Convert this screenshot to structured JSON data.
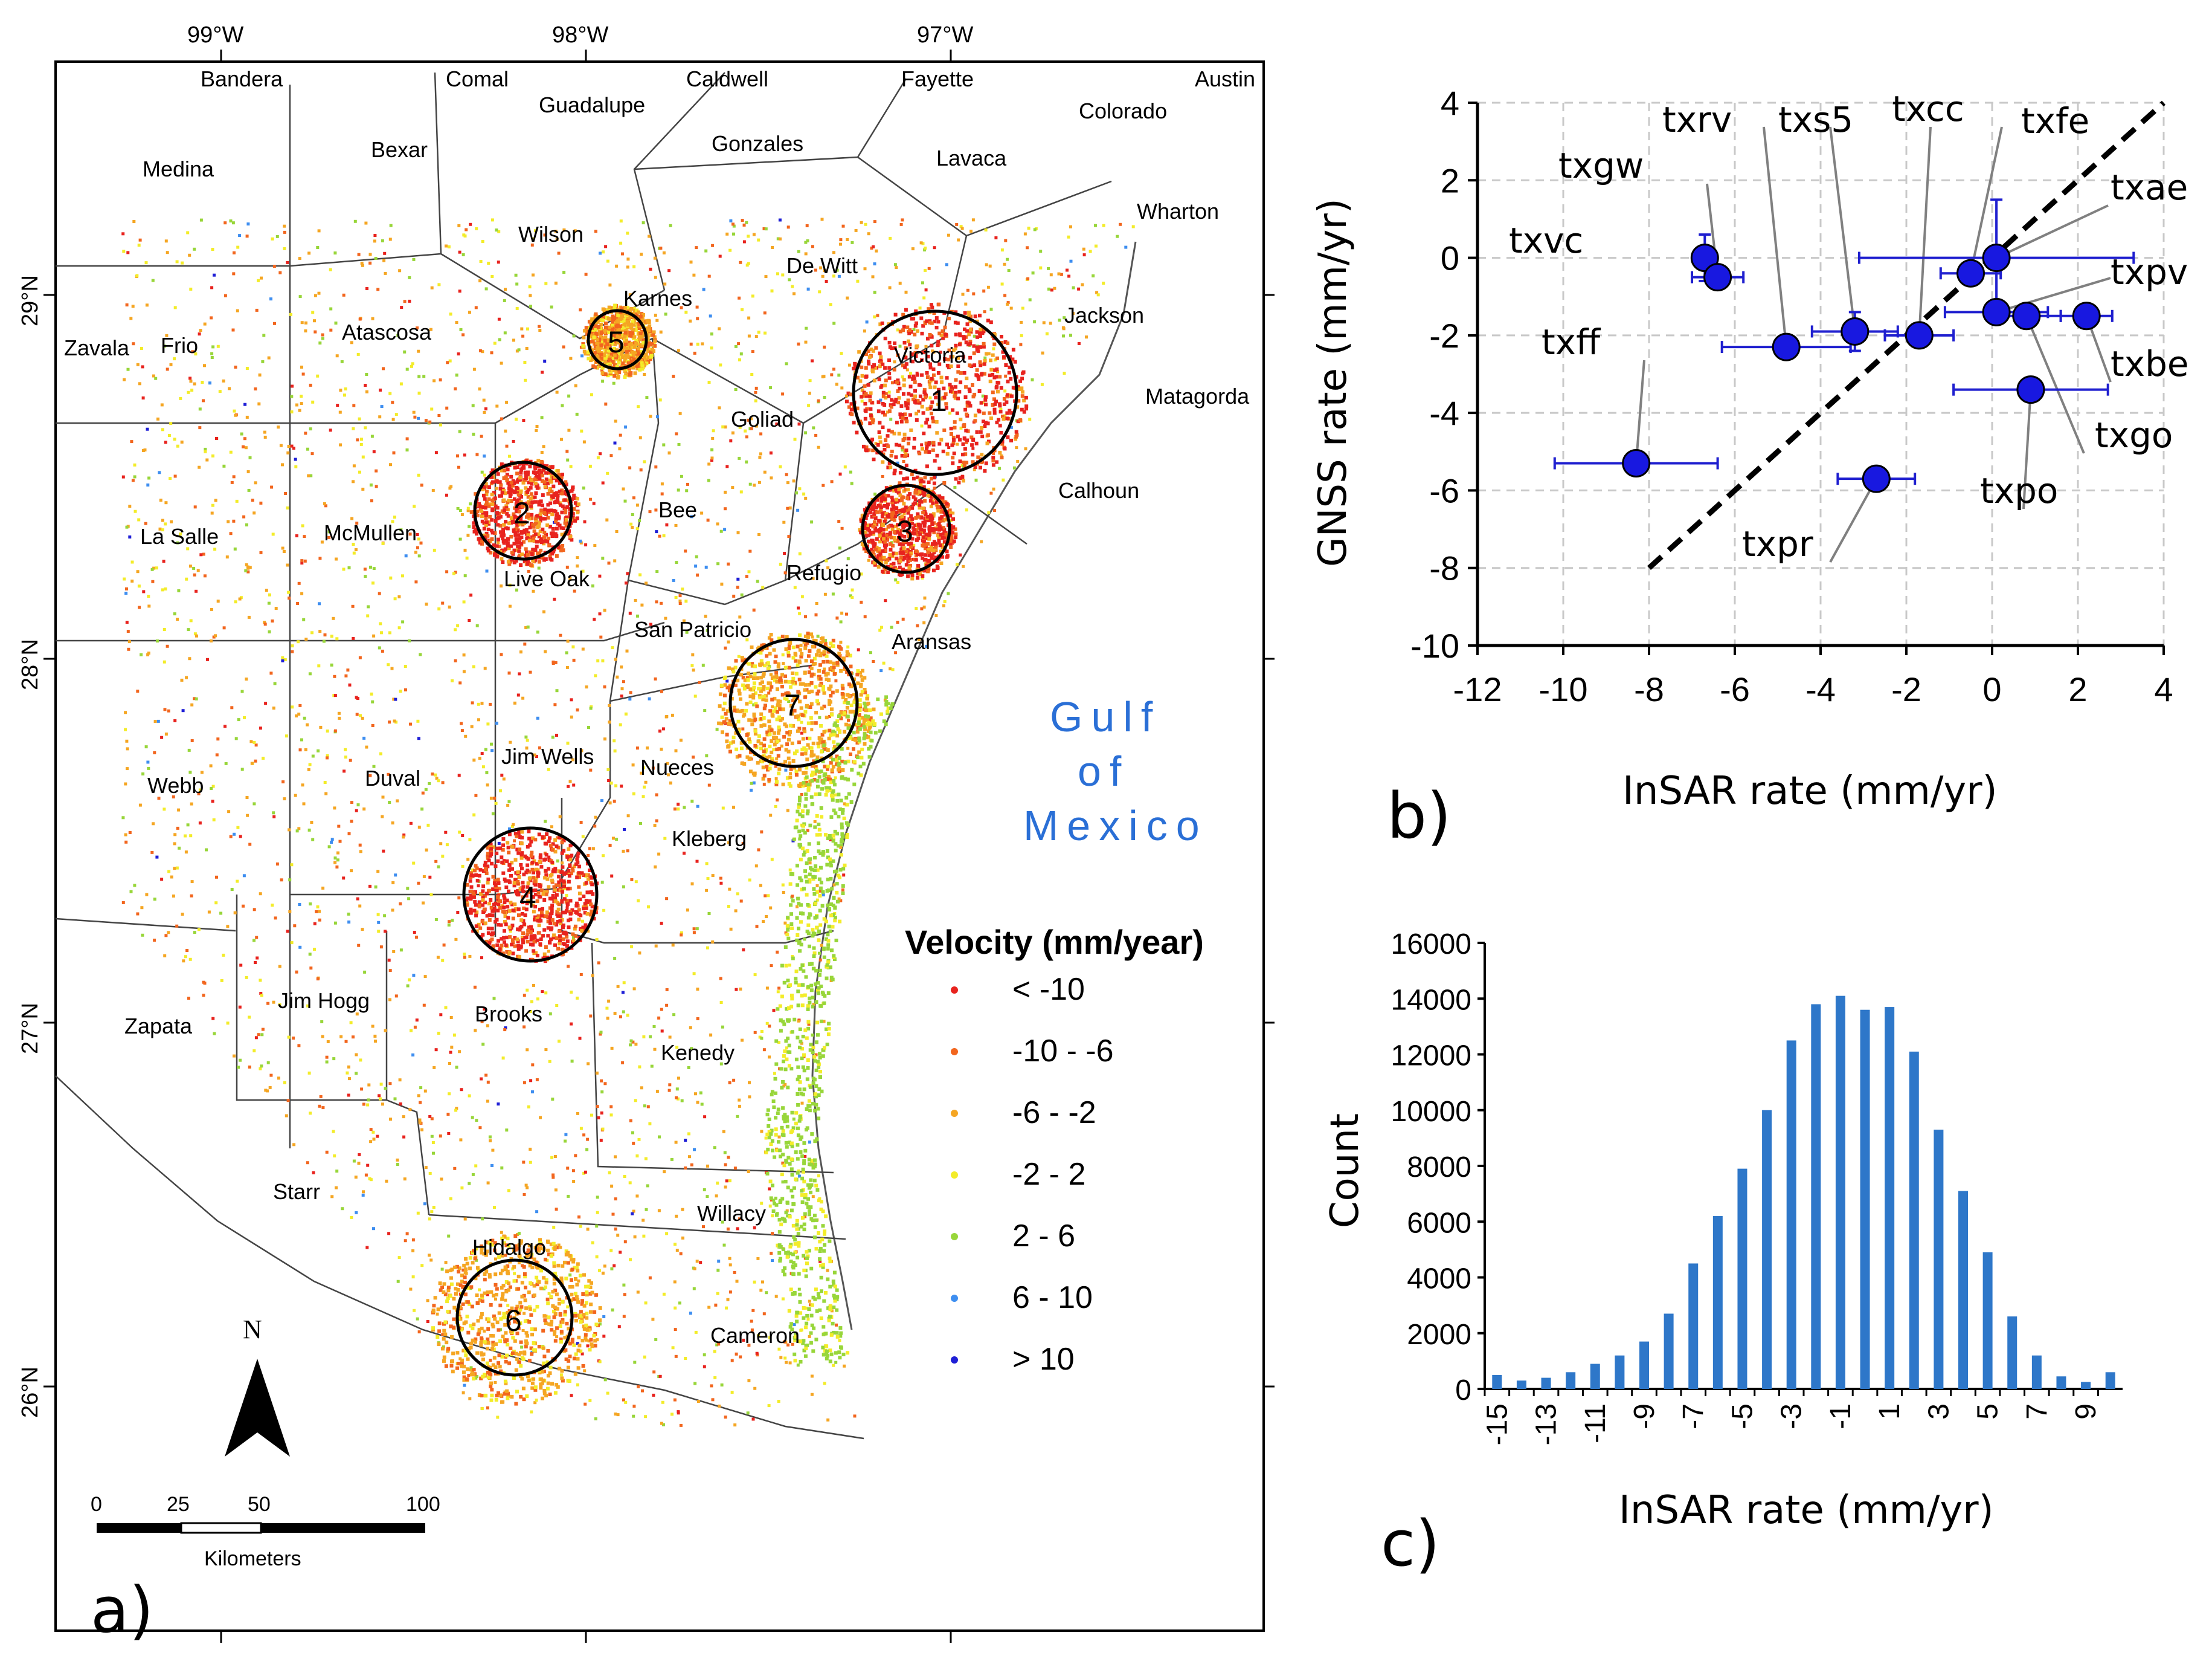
{
  "map": {
    "panel_label": "a)",
    "lon_ticks": [
      "99°W",
      "98°W",
      "97°W"
    ],
    "lat_ticks": [
      "29°N",
      "28°N",
      "27°N",
      "26°N"
    ],
    "counties": [
      "Bandera",
      "Comal",
      "Caldwell",
      "Fayette",
      "Austin",
      "Guadalupe",
      "Colorado",
      "Medina",
      "Bexar",
      "Gonzales",
      "Lavaca",
      "Wharton",
      "Wilson",
      "De Witt",
      "Jackson",
      "Karnes",
      "Zavala",
      "Frio",
      "Atascosa",
      "Victoria",
      "Goliad",
      "Matagorda",
      "Calhoun",
      "La Salle",
      "McMullen",
      "Live Oak",
      "Bee",
      "Refugio",
      "San Patricio",
      "Aransas",
      "Webb",
      "Duval",
      "Jim Wells",
      "Nueces",
      "Kleberg",
      "Jim Hogg",
      "Brooks",
      "Zapata",
      "Kenedy",
      "Starr",
      "Willacy",
      "Hidalgo",
      "Cameron"
    ],
    "circles": [
      "1",
      "2",
      "3",
      "4",
      "5",
      "6",
      "7"
    ],
    "gulf_label": [
      "Gulf",
      "of",
      "Mexico"
    ],
    "north": "N",
    "scale": {
      "ticks": [
        "0",
        "25",
        "50",
        "100"
      ],
      "unit": "Kilometers"
    },
    "legend": {
      "title": "Velocity (mm/year)",
      "items": [
        {
          "label": "< -10",
          "color": "#e8231e"
        },
        {
          "label": "-10 -  -6",
          "color": "#f2661e"
        },
        {
          "label": "-6 - -2",
          "color": "#f5a623"
        },
        {
          "label": "-2 - 2",
          "color": "#f3ec2a"
        },
        {
          "label": "2 - 6",
          "color": "#98d63a"
        },
        {
          "label": "6 - 10",
          "color": "#3e8ef0"
        },
        {
          "label": "> 10",
          "color": "#1f1fd6"
        }
      ]
    }
  },
  "chart_data": [
    {
      "panel": "b)",
      "type": "scatter",
      "xlabel": "InSAR rate (mm/yr)",
      "ylabel": "GNSS rate (mm/yr)",
      "xlim": [
        -12,
        4
      ],
      "ylim": [
        -10,
        4
      ],
      "xticks": [
        -12,
        -10,
        -8,
        -6,
        -4,
        -2,
        0,
        2,
        4
      ],
      "yticks": [
        -10,
        -8,
        -6,
        -4,
        -2,
        0,
        2,
        4
      ],
      "grid": true,
      "reference_line": {
        "style": "dashed",
        "x": [
          -8,
          4
        ],
        "y": [
          -8,
          4
        ]
      },
      "points": [
        {
          "label": "txvc",
          "x": -6.7,
          "y": 0.0,
          "xerr": 0.0,
          "yerr": 0.6
        },
        {
          "label": "txgw",
          "x": -6.4,
          "y": -0.5,
          "xerr": 0.6,
          "yerr": 0.3
        },
        {
          "label": "txrv",
          "x": -4.8,
          "y": -2.3,
          "xerr": 1.5,
          "yerr": 0.3
        },
        {
          "label": "txs5",
          "x": -3.2,
          "y": -1.9,
          "xerr": 1.0,
          "yerr": 0.5
        },
        {
          "label": "txcc",
          "x": -1.7,
          "y": -2.0,
          "xerr": 0.8,
          "yerr": 0.2
        },
        {
          "label": "txfe",
          "x": -0.5,
          "y": -0.4,
          "xerr": 0.7,
          "yerr": 0.3
        },
        {
          "label": "txae",
          "x": 0.1,
          "y": 0.0,
          "xerr": 3.2,
          "yerr": 1.5
        },
        {
          "label": "txpv",
          "x": 0.1,
          "y": -1.4,
          "xerr": 1.2,
          "yerr": 0.2
        },
        {
          "label": "txgo",
          "x": 0.8,
          "y": -1.5,
          "xerr": 0.8,
          "yerr": 0.2
        },
        {
          "label": "txbe",
          "x": 2.2,
          "y": -1.5,
          "xerr": 0.6,
          "yerr": 0.3
        },
        {
          "label": "txpo",
          "x": 0.9,
          "y": -3.4,
          "xerr": 1.8,
          "yerr": 0.2
        },
        {
          "label": "txff",
          "x": -8.3,
          "y": -5.3,
          "xerr": 1.9,
          "yerr": 0.3
        },
        {
          "label": "txpr",
          "x": -2.7,
          "y": -5.7,
          "xerr": 0.9,
          "yerr": 0.2
        }
      ]
    },
    {
      "panel": "c)",
      "type": "bar",
      "xlabel": "InSAR rate (mm/yr)",
      "ylabel": "Count",
      "ylim": [
        0,
        16000
      ],
      "yticks": [
        0,
        2000,
        4000,
        6000,
        8000,
        10000,
        12000,
        14000,
        16000
      ],
      "tick_labels": [
        "-15",
        "-13",
        "-11",
        "-9",
        "-7",
        "-5",
        "-3",
        "-1",
        "1",
        "3",
        "5",
        "7",
        "9"
      ],
      "color": "#2e77c9",
      "categories": [
        -15,
        -14,
        -13,
        -12,
        -11,
        -10,
        -9,
        -8,
        -7,
        -6,
        -5,
        -4,
        -3,
        -2,
        -1,
        0,
        1,
        2,
        3,
        4,
        5,
        6,
        7,
        8,
        9,
        10
      ],
      "values": [
        500,
        300,
        400,
        600,
        900,
        1200,
        1700,
        2700,
        4500,
        6200,
        7900,
        10000,
        12500,
        13800,
        14100,
        13600,
        13700,
        12100,
        9300,
        7100,
        4900,
        2600,
        1200,
        450,
        250,
        600
      ]
    }
  ]
}
